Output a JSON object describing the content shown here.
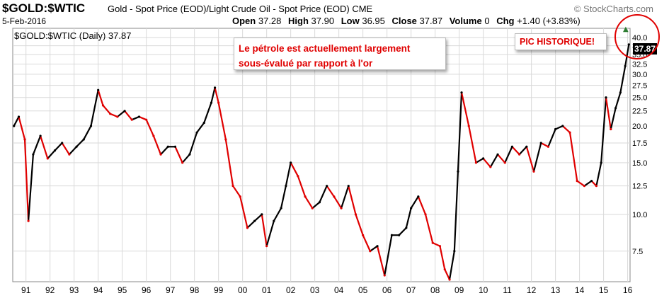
{
  "header": {
    "symbol": "$GOLD:$WTIC",
    "description": "Gold - Spot Price (EOD)/Light Crude Oil - Spot Price (EOD)  CME",
    "brand": "© StockCharts.com",
    "date": "5-Feb-2016",
    "open_label": "Open",
    "open_value": "37.28",
    "high_label": "High",
    "high_value": "37.90",
    "low_label": "Low",
    "low_value": "36.95",
    "close_label": "Close",
    "close_value": "37.87",
    "volume_label": "Volume",
    "volume_value": "0",
    "chg_label": "Chg",
    "chg_value": "+1.40 (+3.83%)",
    "up_arrow": "▲"
  },
  "annotations": {
    "note1_line1": "Le pétrole est actuellement largement",
    "note1_line2": "sous-évalué par rapport à l'or",
    "note2": "PIC HISTORIQUE!"
  },
  "colors": {
    "up": "#000000",
    "down": "#e00000",
    "grid": "#d9d9d9",
    "annotation": "#e00000"
  },
  "chart_data": {
    "type": "line",
    "title": "$GOLD:$WTIC (Daily) 37.87",
    "last_value": "37.87",
    "scale": "log",
    "ylim": [
      5.9,
      43
    ],
    "y_ticks": [
      7.5,
      10.0,
      12.5,
      15.0,
      17.5,
      20.0,
      22.5,
      25.0,
      27.5,
      30.0,
      32.5,
      35.0,
      37.5,
      40.0
    ],
    "x_ticks": [
      "91",
      "92",
      "93",
      "94",
      "95",
      "96",
      "97",
      "98",
      "99",
      "00",
      "01",
      "02",
      "03",
      "04",
      "05",
      "06",
      "07",
      "08",
      "09",
      "10",
      "11",
      "12",
      "13",
      "14",
      "15",
      "16"
    ],
    "xlim": [
      1990.45,
      2016.1
    ],
    "x": [
      1990.5,
      1990.7,
      1990.95,
      1991.1,
      1991.3,
      1991.6,
      1991.9,
      1992.2,
      1992.5,
      1992.8,
      1993.1,
      1993.4,
      1993.7,
      1994.0,
      1994.2,
      1994.5,
      1994.8,
      1995.1,
      1995.4,
      1995.7,
      1996.0,
      1996.3,
      1996.6,
      1996.9,
      1997.2,
      1997.5,
      1997.8,
      1998.1,
      1998.4,
      1998.7,
      1998.85,
      1999.0,
      1999.3,
      1999.6,
      1999.9,
      2000.2,
      2000.5,
      2000.8,
      2001.0,
      2001.3,
      2001.6,
      2001.8,
      2002.0,
      2002.3,
      2002.6,
      2002.9,
      2003.2,
      2003.5,
      2003.8,
      2004.1,
      2004.4,
      2004.7,
      2005.0,
      2005.3,
      2005.6,
      2005.9,
      2006.2,
      2006.5,
      2006.8,
      2007.0,
      2007.3,
      2007.6,
      2007.9,
      2008.2,
      2008.4,
      2008.6,
      2008.8,
      2008.95,
      2009.1,
      2009.4,
      2009.7,
      2010.0,
      2010.3,
      2010.6,
      2010.9,
      2011.2,
      2011.5,
      2011.8,
      2012.1,
      2012.4,
      2012.7,
      2013.0,
      2013.3,
      2013.6,
      2013.9,
      2014.2,
      2014.5,
      2014.7,
      2014.9,
      2015.1,
      2015.3,
      2015.5,
      2015.7,
      2015.9,
      2016.05
    ],
    "values": [
      20.0,
      21.5,
      18.0,
      9.5,
      16.0,
      18.5,
      15.5,
      16.5,
      17.5,
      16.0,
      17.0,
      18.0,
      20.0,
      26.5,
      23.5,
      22.0,
      21.5,
      22.5,
      21.0,
      21.5,
      21.0,
      18.5,
      16.0,
      17.0,
      17.0,
      15.0,
      16.0,
      19.0,
      20.5,
      24.0,
      27.0,
      24.0,
      18.0,
      12.5,
      11.5,
      9.0,
      9.5,
      10.0,
      7.8,
      9.5,
      10.5,
      12.5,
      15.0,
      13.5,
      11.5,
      10.5,
      11.0,
      12.5,
      11.5,
      10.5,
      12.5,
      10.0,
      8.5,
      7.5,
      7.8,
      6.2,
      8.5,
      8.5,
      9.0,
      10.5,
      11.5,
      10.0,
      8.0,
      7.8,
      6.5,
      6.0,
      7.5,
      14.0,
      26.0,
      20.0,
      15.0,
      15.5,
      14.5,
      16.0,
      15.0,
      17.0,
      16.0,
      17.0,
      14.0,
      17.5,
      17.0,
      19.5,
      20.0,
      19.0,
      13.0,
      12.5,
      13.0,
      12.5,
      15.0,
      25.0,
      19.5,
      23.0,
      26.0,
      32.0,
      37.87
    ]
  }
}
